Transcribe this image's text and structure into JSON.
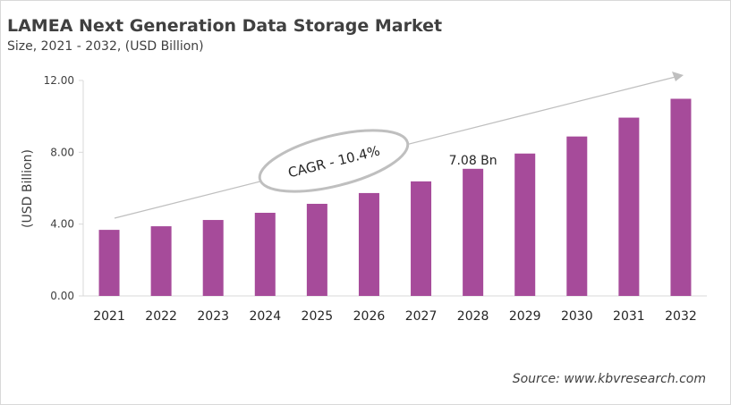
{
  "title": "LAMEA Next Generation Data Storage Market",
  "subtitle": "Size, 2021 - 2032, (USD Billion)",
  "source": "Source: www.kbvresearch.com",
  "chart_data": {
    "type": "bar",
    "categories": [
      "2021",
      "2022",
      "2023",
      "2024",
      "2025",
      "2026",
      "2027",
      "2028",
      "2029",
      "2030",
      "2031",
      "2032"
    ],
    "values": [
      3.68,
      3.88,
      4.23,
      4.63,
      5.13,
      5.73,
      6.38,
      7.08,
      7.93,
      8.88,
      9.93,
      10.98
    ],
    "ylabel": "(USD Billion)",
    "ylim": [
      0,
      12
    ],
    "yticks": [
      "0.00",
      "4.00",
      "8.00",
      "12.00"
    ],
    "ytick_values": [
      0,
      4,
      8,
      12
    ],
    "grid": false,
    "bar_color": "#a64b9a",
    "annotations": {
      "data_label": "7.08 Bn",
      "data_label_category": "2028",
      "cagr": "CAGR - 10.4%"
    }
  }
}
